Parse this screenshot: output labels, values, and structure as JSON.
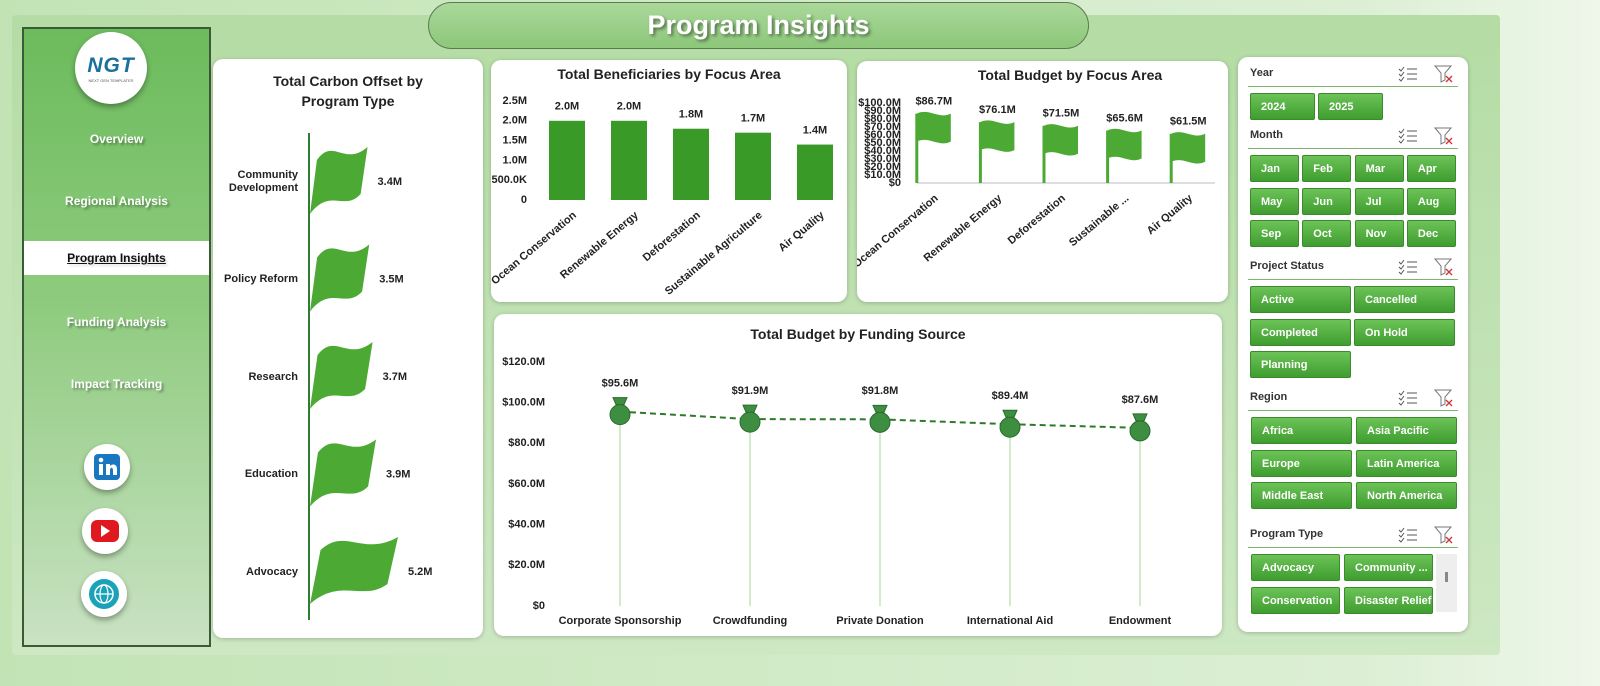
{
  "header": {
    "title": "Program Insights"
  },
  "logo": {
    "title": "NGT",
    "subtitle": "NEXT GEN TEMPLATES"
  },
  "nav": {
    "items": [
      "Overview",
      "Regional Analysis",
      "Program Insights",
      "Funding Analysis",
      "Impact Tracking"
    ],
    "active": 2
  },
  "chart_data": [
    {
      "type": "bar",
      "orientation": "horizontal",
      "marker": "flag",
      "title": "Total Carbon Offset by Program Type",
      "categories": [
        "Community Development",
        "Policy Reform",
        "Research",
        "Education",
        "Advocacy"
      ],
      "values": [
        3400000,
        3500000,
        3700000,
        3900000,
        5200000
      ],
      "value_labels": [
        "3.4M",
        "3.5M",
        "3.7M",
        "3.9M",
        "5.2M"
      ],
      "color": "#4ca934"
    },
    {
      "type": "bar",
      "title": "Total Beneficiaries by Focus Area",
      "categories": [
        "Ocean Conservation",
        "Renewable Energy",
        "Deforestation",
        "Sustainable Agriculture",
        "Air Quality"
      ],
      "values": [
        2000000,
        2000000,
        1800000,
        1700000,
        1400000
      ],
      "value_labels": [
        "2.0M",
        "2.0M",
        "1.8M",
        "1.7M",
        "1.4M"
      ],
      "color": "#3a9a28",
      "ylim": [
        0,
        2500000
      ],
      "yticks": [
        0,
        {
          "value": 500000,
          "label": "500.0K"
        },
        {
          "value": 1000000,
          "label": "1.0M"
        },
        {
          "value": 1500000,
          "label": "1.5M"
        },
        {
          "value": 2000000,
          "label": "2.0M"
        },
        {
          "value": 2500000,
          "label": "2.5M"
        }
      ]
    },
    {
      "type": "bar",
      "marker": "flag",
      "title": "Total Budget by Focus Area",
      "categories": [
        "Ocean Conservation",
        "Renewable Energy",
        "Deforestation",
        "Sustainable ...",
        "Air Quality"
      ],
      "values": [
        86700000,
        76100000,
        71500000,
        65600000,
        61500000
      ],
      "value_labels": [
        "$86.7M",
        "$76.1M",
        "$71.5M",
        "$65.6M",
        "$61.5M"
      ],
      "color": "#4ca934",
      "ylim": [
        0,
        100000000
      ],
      "yticks": [
        {
          "value": 0,
          "label": "$0"
        },
        {
          "value": 10000000,
          "label": "$10.0M"
        },
        {
          "value": 20000000,
          "label": "$20.0M"
        },
        {
          "value": 30000000,
          "label": "$30.0M"
        },
        {
          "value": 40000000,
          "label": "$40.0M"
        },
        {
          "value": 50000000,
          "label": "$50.0M"
        },
        {
          "value": 60000000,
          "label": "$60.0M"
        },
        {
          "value": 70000000,
          "label": "$70.0M"
        },
        {
          "value": 80000000,
          "label": "$80.0M"
        },
        {
          "value": 90000000,
          "label": "$90.0M"
        },
        {
          "value": 100000000,
          "label": "$100.0M"
        }
      ]
    },
    {
      "type": "line",
      "marker": "money-bag",
      "line_style": "dashed",
      "title": "Total Budget by Funding Source",
      "categories": [
        "Corporate Sponsorship",
        "Crowdfunding",
        "Private Donation",
        "International Aid",
        "Endowment"
      ],
      "values": [
        95600000,
        91900000,
        91800000,
        89400000,
        87600000
      ],
      "value_labels": [
        "$95.6M",
        "$91.9M",
        "$91.8M",
        "$89.4M",
        "$87.6M"
      ],
      "color": "#2f7a2a",
      "ylim": [
        0,
        120000000
      ],
      "yticks": [
        {
          "value": 0,
          "label": "$0"
        },
        {
          "value": 20000000,
          "label": "$20.0M"
        },
        {
          "value": 40000000,
          "label": "$40.0M"
        },
        {
          "value": 60000000,
          "label": "$60.0M"
        },
        {
          "value": 80000000,
          "label": "$80.0M"
        },
        {
          "value": 100000000,
          "label": "$100.0M"
        },
        {
          "value": 120000000,
          "label": "$120.0M"
        }
      ]
    }
  ],
  "slicers": [
    {
      "title": "Year",
      "items": [
        "2024",
        "2025"
      ]
    },
    {
      "title": "Month",
      "items": [
        "Jan",
        "Feb",
        "Mar",
        "Apr",
        "May",
        "Jun",
        "Jul",
        "Aug",
        "Sep",
        "Oct",
        "Nov",
        "Dec"
      ]
    },
    {
      "title": "Project Status",
      "items": [
        "Active",
        "Cancelled",
        "Completed",
        "On Hold",
        "Planning"
      ]
    },
    {
      "title": "Region",
      "items": [
        "Africa",
        "Asia Pacific",
        "Europe",
        "Latin America",
        "Middle East",
        "North America"
      ]
    },
    {
      "title": "Program Type",
      "items": [
        "Advocacy",
        "Community ...",
        "Conservation",
        "Disaster Relief"
      ]
    }
  ]
}
